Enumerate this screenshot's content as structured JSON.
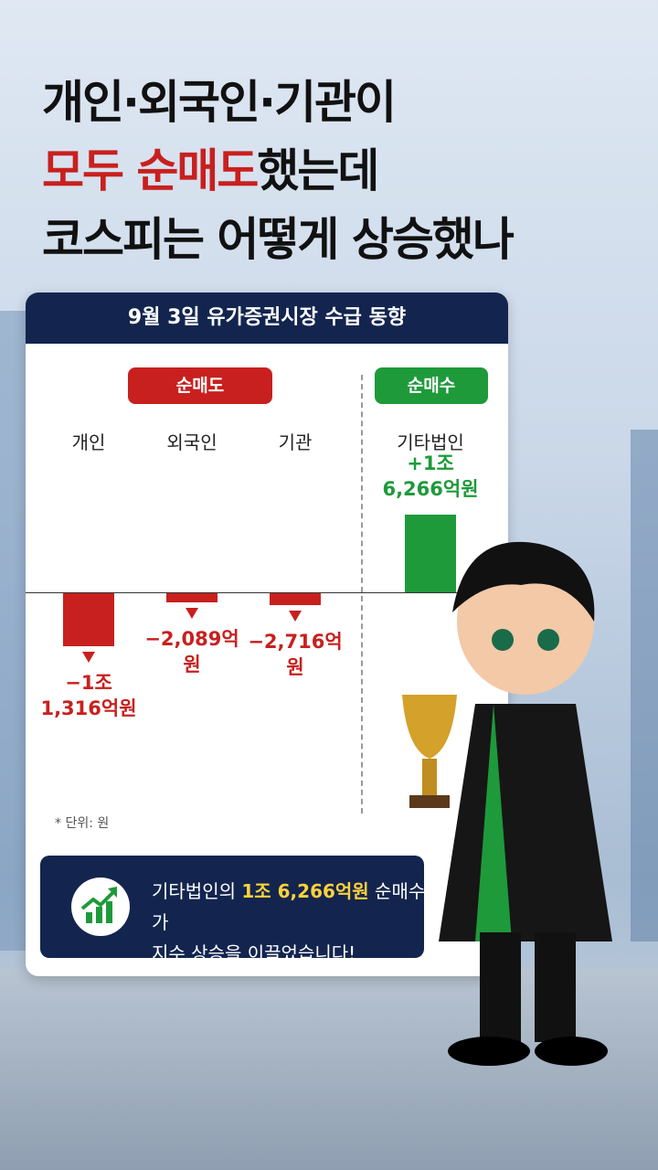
{
  "headline": {
    "line1": "개인·외국인·기관이",
    "line2_red": "모두 순매도",
    "line2_rest": "했는데",
    "line3": "코스피는 어떻게 상승했나"
  },
  "chart_data": {
    "type": "bar",
    "title": "9월 3일 유가증권시장 수급 동향",
    "groups": [
      {
        "label": "순매도",
        "color": "#c8201e"
      },
      {
        "label": "순매수",
        "color": "#1e9a3a"
      }
    ],
    "categories": [
      "개인",
      "외국인",
      "기관",
      "기타법인"
    ],
    "values": [
      -11316,
      -2089,
      -2716,
      16266
    ],
    "value_labels": [
      "−1조 1,316억원",
      "−2,089억원",
      "−2,716억원",
      "+1조 6,266억원"
    ],
    "colors": [
      "#c8201e",
      "#c8201e",
      "#c8201e",
      "#1e9a3a"
    ],
    "unit_note": "* 단위: 원"
  },
  "message": {
    "pre": "기타법인의 ",
    "highlight": "1조 6,266억원",
    "post": " 순매수가",
    "line2": "지수 상승을 이끌었습니다!"
  }
}
